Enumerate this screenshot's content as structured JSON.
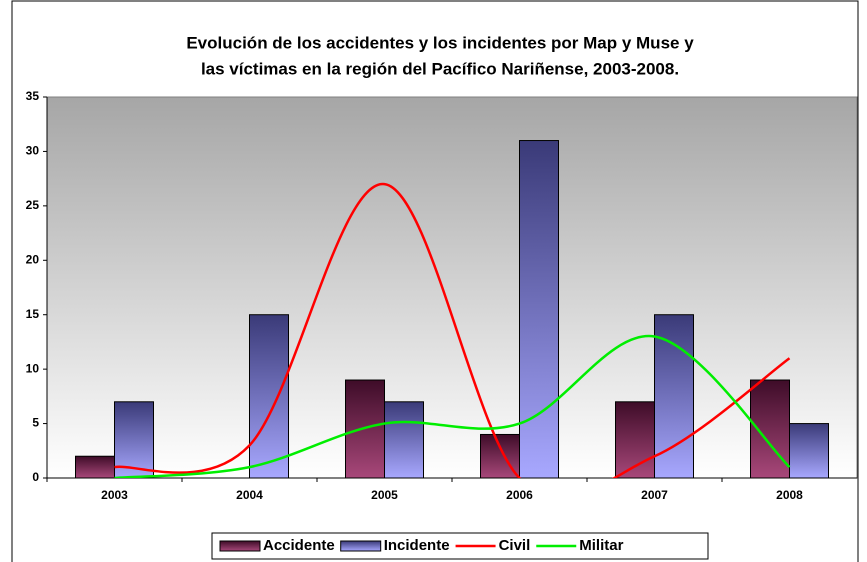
{
  "chart_data": {
    "type": "bar-line",
    "title": [
      "Evolución de los accidentes y los incidentes por Map y Muse y",
      "las víctimas en la región del Pacífico Nariñense, 2003-2008."
    ],
    "categories": [
      "2003",
      "2004",
      "2005",
      "2006",
      "2007",
      "2008"
    ],
    "series": [
      {
        "name": "Accidente",
        "type": "bar",
        "color": "#7a2050",
        "values": [
          2,
          0,
          9,
          4,
          7,
          9
        ]
      },
      {
        "name": "Incidente",
        "type": "bar",
        "color": "#7070d0",
        "values": [
          7,
          15,
          7,
          31,
          15,
          5
        ]
      },
      {
        "name": "Civil",
        "type": "line",
        "color": "#ff0000",
        "values": [
          1,
          3,
          27,
          0,
          2,
          11
        ]
      },
      {
        "name": "Militar",
        "type": "line",
        "color": "#00ee00",
        "values": [
          0,
          1,
          5,
          5,
          13,
          1
        ]
      }
    ],
    "ylim": [
      0,
      35
    ],
    "yticks": [
      0,
      5,
      10,
      15,
      20,
      25,
      30,
      35
    ],
    "legend": "bottom"
  }
}
